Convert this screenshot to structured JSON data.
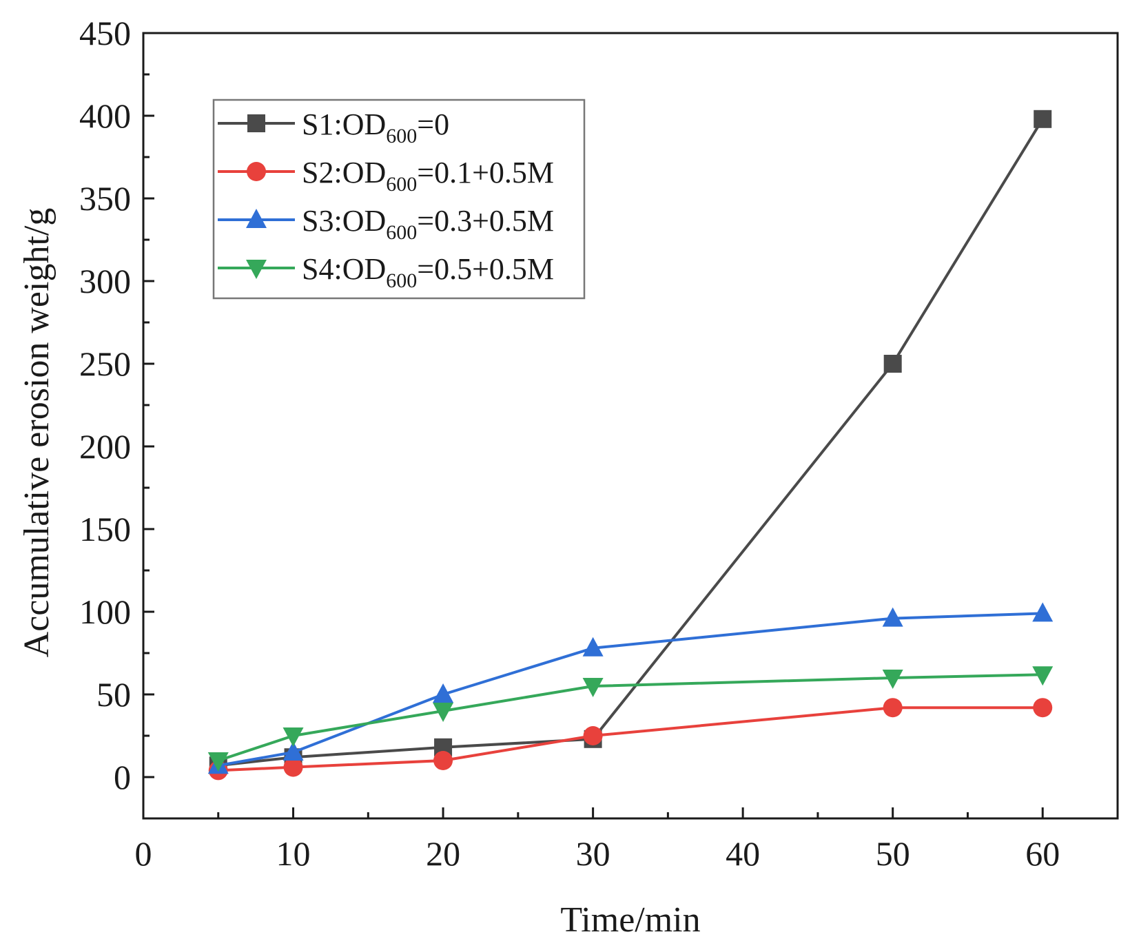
{
  "chart_data": {
    "type": "line",
    "title": "",
    "xlabel": "Time/min",
    "ylabel": "Accumulative erosion weight/g",
    "xlim": [
      0,
      65
    ],
    "ylim": [
      -25,
      450
    ],
    "xticks": [
      0,
      10,
      20,
      30,
      40,
      50,
      60
    ],
    "yticks": [
      0,
      50,
      100,
      150,
      200,
      250,
      300,
      350,
      400,
      450
    ],
    "grid": false,
    "legend_position": "top-left",
    "x": [
      5,
      10,
      20,
      30,
      50,
      60
    ],
    "series": [
      {
        "name": "S1",
        "label_prefix": "S1:OD",
        "label_sub": "600",
        "label_suffix": "=0",
        "color": "#4a4a4a",
        "marker": "square",
        "values": [
          7,
          12,
          18,
          23,
          250,
          398
        ]
      },
      {
        "name": "S2",
        "label_prefix": "S2:OD",
        "label_sub": "600",
        "label_suffix": "=0.1+0.5M",
        "color": "#e8413c",
        "marker": "circle",
        "values": [
          4,
          6,
          10,
          25,
          42,
          42
        ]
      },
      {
        "name": "S3",
        "label_prefix": "S3:OD",
        "label_sub": "600",
        "label_suffix": "=0.3+0.5M",
        "color": "#2f6fd6",
        "marker": "triangle-up",
        "values": [
          7,
          15,
          50,
          78,
          96,
          99
        ]
      },
      {
        "name": "S4",
        "label_prefix": "S4:OD",
        "label_sub": "600",
        "label_suffix": "=0.5+0.5M",
        "color": "#35a85a",
        "marker": "triangle-down",
        "values": [
          10,
          25,
          40,
          55,
          60,
          62
        ]
      }
    ]
  }
}
